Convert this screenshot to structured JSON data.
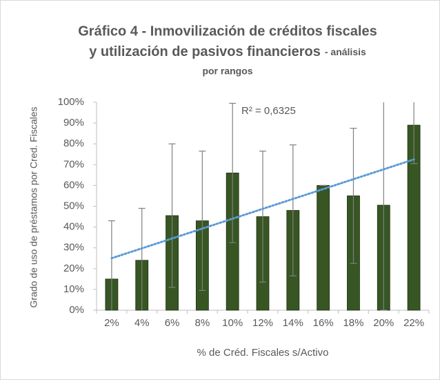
{
  "chart_data": {
    "type": "bar",
    "title": [
      "Gráfico 4 - Inmovilización de créditos fiscales",
      "y utilización de pasivos financieros"
    ],
    "subtitle": [
      "- análisis",
      "por rangos"
    ],
    "x_label": "% de Créd. Fiscales s/Activo",
    "y_label": "Grado de uso de préstamos por Cred. Fiscales",
    "categories": [
      "2%",
      "4%",
      "6%",
      "8%",
      "10%",
      "12%",
      "14%",
      "16%",
      "18%",
      "20%",
      "22%"
    ],
    "values": [
      15,
      24,
      45.5,
      43,
      66,
      45,
      48,
      60,
      55,
      50.5,
      89
    ],
    "errors": [
      28,
      25,
      34.5,
      33.5,
      33.5,
      31.5,
      31.5,
      0,
      32.5,
      50.5,
      18.5
    ],
    "color": "#375623",
    "error_color": "#7f7f7f",
    "trendline": {
      "start": 25,
      "end": 72.5,
      "color": "#5b9bd5",
      "annotation": "R² = 0,6325"
    },
    "ylim": [
      0,
      100
    ],
    "yticks": [
      {
        "value": 0,
        "label": "0%"
      },
      {
        "value": 10,
        "label": "10%"
      },
      {
        "value": 20,
        "label": "20%"
      },
      {
        "value": 30,
        "label": "30%"
      },
      {
        "value": 40,
        "label": "40%"
      },
      {
        "value": 50,
        "label": "50%"
      },
      {
        "value": 60,
        "label": "60%"
      },
      {
        "value": 70,
        "label": "70%"
      },
      {
        "value": 80,
        "label": "80%"
      },
      {
        "value": 90,
        "label": "90%"
      },
      {
        "value": 100,
        "label": "100%"
      }
    ],
    "grid": false
  }
}
